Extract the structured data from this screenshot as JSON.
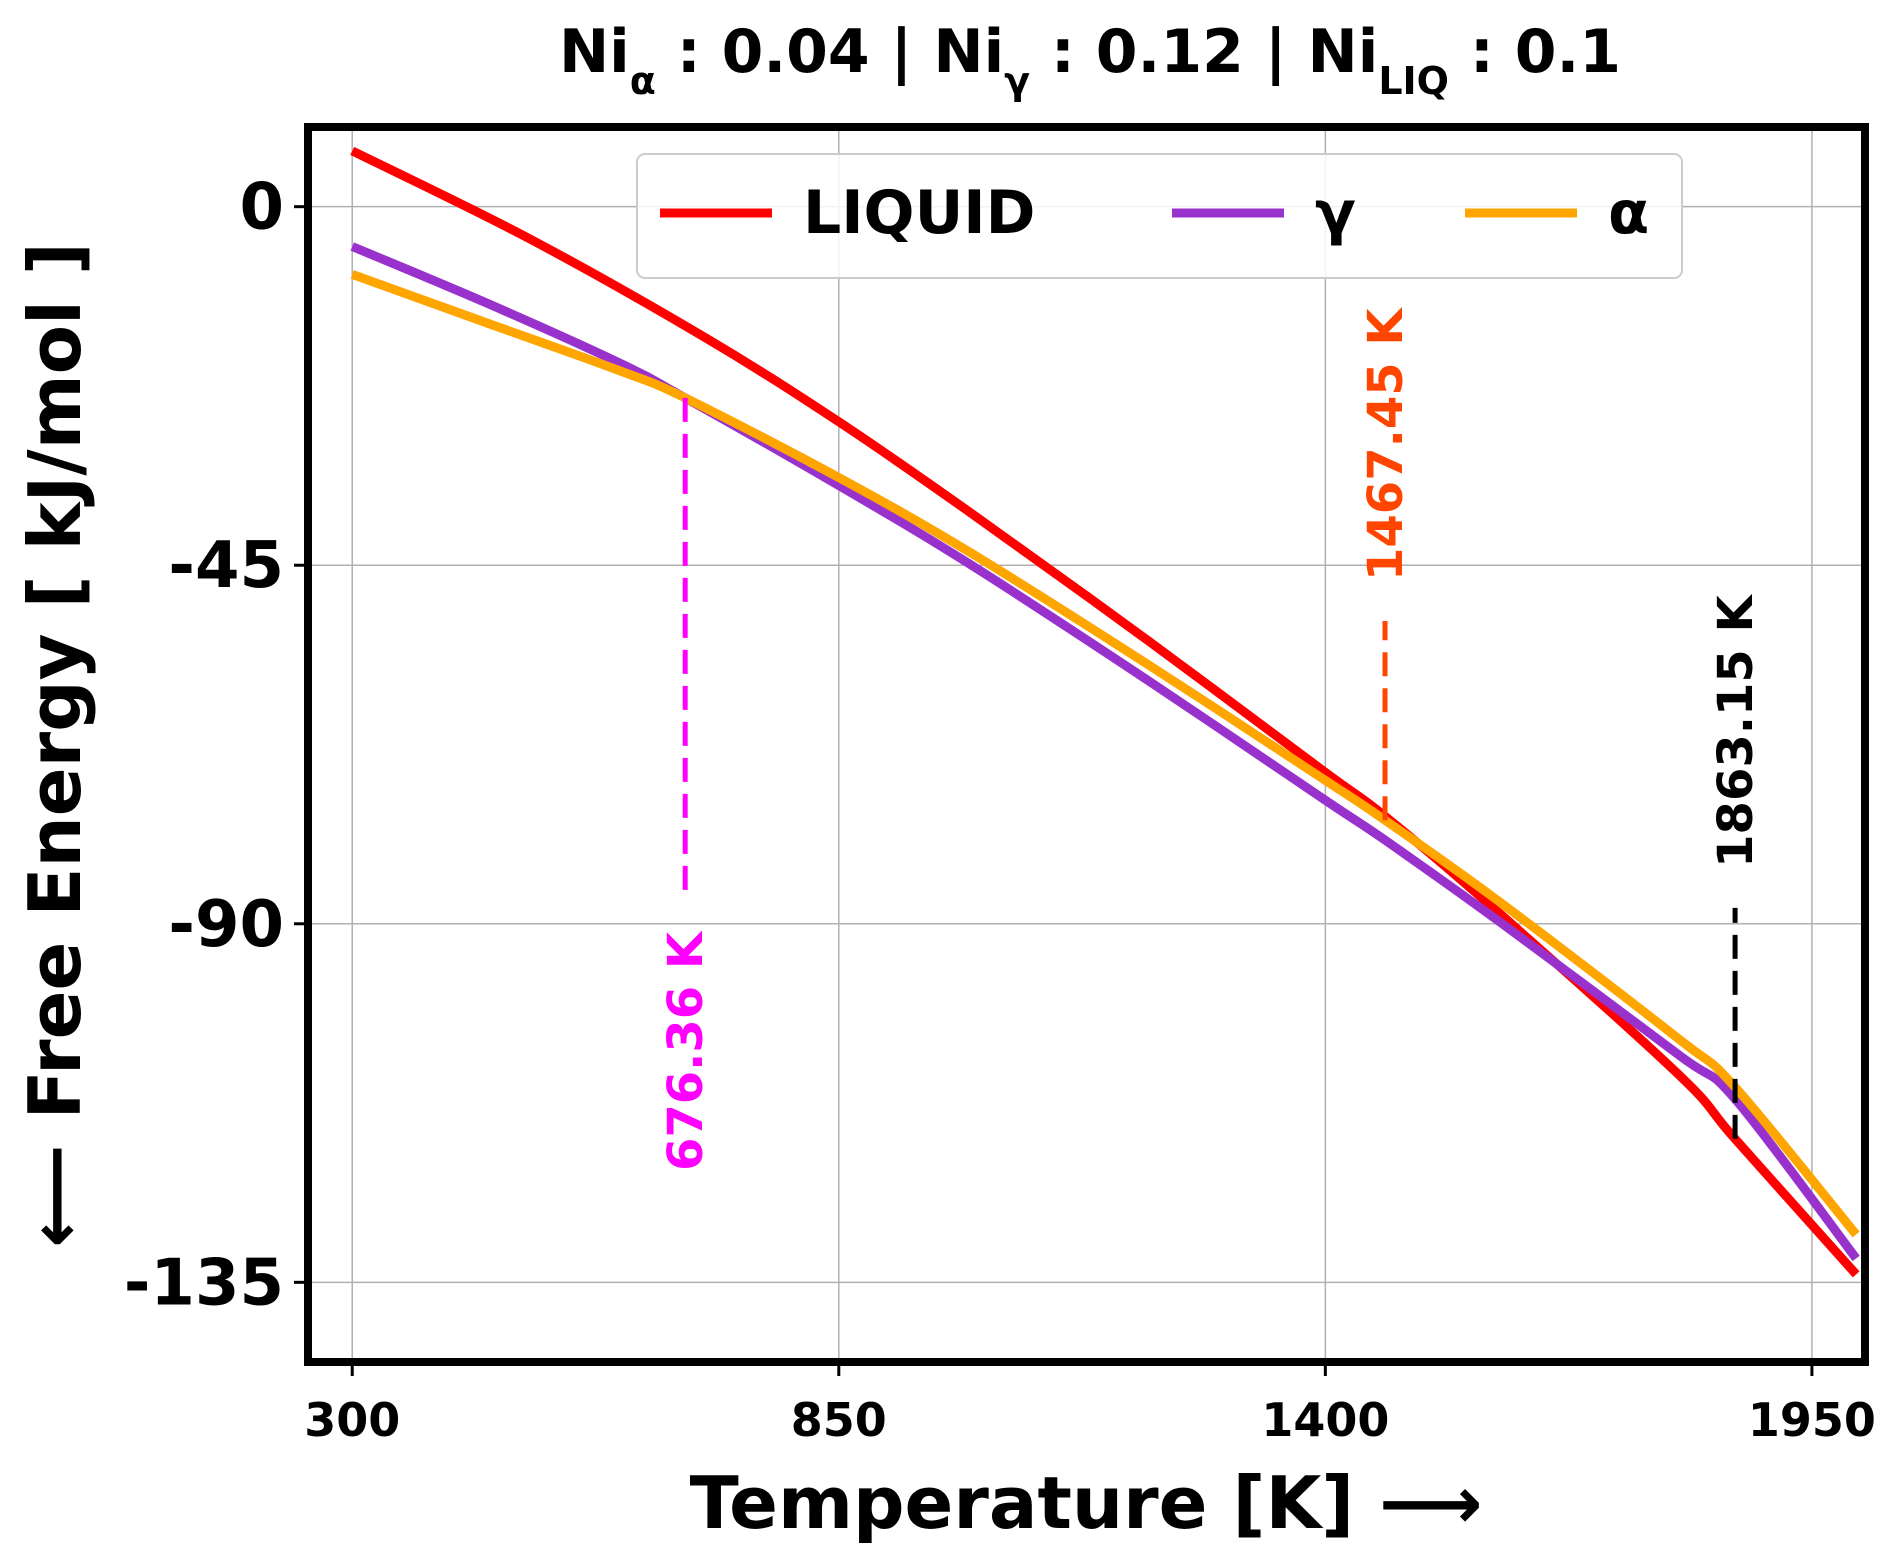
{
  "chart_data": {
    "type": "line",
    "title": {
      "parts": [
        {
          "base": "Ni",
          "sub": "α",
          "value": ": 0.04"
        },
        {
          "base": "Ni",
          "sub": "γ",
          "value": ": 0.12"
        },
        {
          "base": "Ni",
          "sub": "LIQ",
          "value": ": 0.1"
        }
      ],
      "separator": "|"
    },
    "xlabel": "Temperature [K] ⟶",
    "ylabel": "⟵ Free Energy [ kJ/mol ]",
    "xlim": [
      250,
      2010
    ],
    "ylim": [
      -145,
      10
    ],
    "xticks": [
      300,
      850,
      1400,
      1950
    ],
    "yticks": [
      0,
      -45,
      -90,
      -135
    ],
    "grid": true,
    "legend": {
      "placement": "top-center",
      "columns": 3
    },
    "series": [
      {
        "name": "LIQUID",
        "color": "#ff0000",
        "x": [
          300,
          500,
          700,
          850,
          1000,
          1200,
          1400,
          1467.45,
          1600,
          1800,
          1863.15,
          2000
        ],
        "y": [
          7,
          -4,
          -16.5,
          -27,
          -38.5,
          -54.5,
          -71,
          -76.5,
          -89,
          -109,
          -117,
          -134
        ]
      },
      {
        "name": "γ",
        "color": "#9932cc",
        "x": [
          300,
          450,
          600,
          676.36,
          850,
          1000,
          1200,
          1400,
          1467.45,
          1600,
          1800,
          1863.15,
          2000
        ],
        "y": [
          -5,
          -12,
          -19.5,
          -24,
          -35,
          -45,
          -59.5,
          -74.5,
          -79.5,
          -90,
          -106.5,
          -112,
          -132
        ]
      },
      {
        "name": "α",
        "color": "#ffa500",
        "x": [
          300,
          450,
          600,
          676.36,
          850,
          1000,
          1200,
          1400,
          1467.45,
          1600,
          1800,
          1863.15,
          2000
        ],
        "y": [
          -8.5,
          -14.5,
          -20.5,
          -24,
          -34,
          -43.5,
          -57.5,
          -72,
          -77,
          -87.5,
          -104.5,
          -110.5,
          -129
        ]
      }
    ],
    "annotations": [
      {
        "label": "676.36 K",
        "x": 676.36,
        "y_from": -24,
        "y_to": -86,
        "color": "#ff00ff"
      },
      {
        "label": "1467.45 K",
        "x": 1467.45,
        "y_from": -77,
        "y_to": -52,
        "color": "#ff4500"
      },
      {
        "label": "1863.15 K",
        "x": 1863.15,
        "y_from": -117,
        "y_to": -88,
        "color": "#000000"
      }
    ]
  }
}
